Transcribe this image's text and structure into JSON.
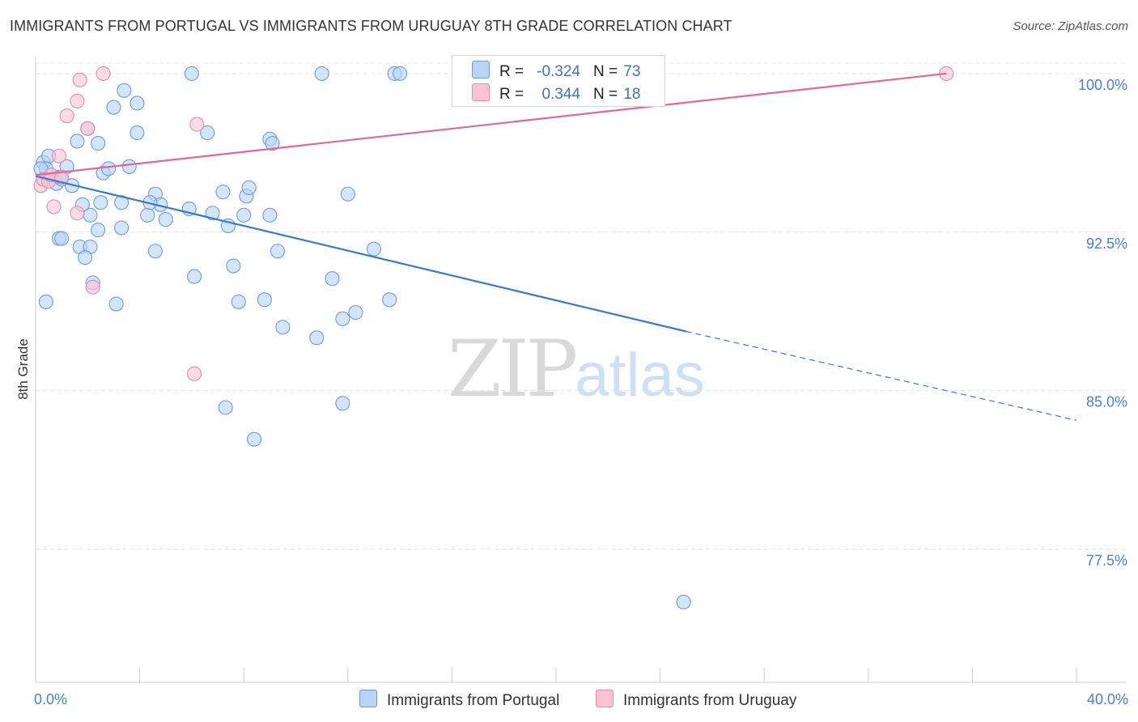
{
  "title": "IMMIGRANTS FROM PORTUGAL VS IMMIGRANTS FROM URUGUAY 8TH GRADE CORRELATION CHART",
  "source": "Source: ZipAtlas.com",
  "watermark": {
    "zip": "ZIP",
    "atlas": "atlas"
  },
  "legend": {
    "r_label": "R =",
    "n_label": "N =",
    "rows": [
      {
        "r": "-0.324",
        "n": "73",
        "color": "#b8d3f5",
        "border": "#6a9de0"
      },
      {
        "r": "0.344",
        "n": "18",
        "color": "#f8c4d4",
        "border": "#e88aa8"
      }
    ]
  },
  "bottom_legend": [
    {
      "label": "Immigrants from Portugal",
      "color": "#b8d3f5",
      "border": "#6a9de0"
    },
    {
      "label": "Immigrants from Uruguay",
      "color": "#f8c4d4",
      "border": "#e88aa8"
    }
  ],
  "chart_data": {
    "type": "scatter",
    "title": "IMMIGRANTS FROM PORTUGAL VS IMMIGRANTS FROM URUGUAY 8TH GRADE CORRELATION CHART",
    "xlabel": "",
    "ylabel": "8th Grade",
    "xlim": [
      0,
      40
    ],
    "ylim": [
      71.2,
      100.8
    ],
    "x_tick_labels": [
      {
        "value": 0,
        "label": "0.0%"
      },
      {
        "value": 40,
        "label": "40.0%"
      }
    ],
    "y_tick_labels": [
      {
        "value": 100,
        "label": "100.0%"
      },
      {
        "value": 92.5,
        "label": "92.5%"
      },
      {
        "value": 85,
        "label": "85.0%"
      },
      {
        "value": 77.5,
        "label": "77.5%"
      }
    ],
    "grid": true,
    "series": [
      {
        "name": "Immigrants from Portugal",
        "color": "#b8d3f5",
        "stroke": "#6a9de0",
        "trend": {
          "x0": 0,
          "y0": 95.15,
          "x1": 25.0,
          "y1": 87.8,
          "dashed_to_x": 40.0,
          "dashed_to_y": 83.6,
          "color": "#3a78d6"
        },
        "points": [
          [
            0.3,
            95.8
          ],
          [
            0.5,
            96.1
          ],
          [
            0.4,
            95.5
          ],
          [
            0.6,
            95.2
          ],
          [
            0.8,
            94.8
          ],
          [
            0.9,
            95.1
          ],
          [
            1.0,
            95.0
          ],
          [
            1.2,
            95.6
          ],
          [
            1.6,
            96.8
          ],
          [
            2.0,
            97.4
          ],
          [
            2.4,
            96.7
          ],
          [
            2.6,
            95.3
          ],
          [
            2.8,
            95.5
          ],
          [
            3.0,
            98.4
          ],
          [
            3.4,
            99.2
          ],
          [
            3.9,
            98.6
          ],
          [
            6.0,
            100.0
          ],
          [
            11.0,
            100.0
          ],
          [
            13.8,
            100.0
          ],
          [
            14.0,
            100.0
          ],
          [
            16.6,
            100.0
          ],
          [
            3.9,
            97.2
          ],
          [
            3.6,
            95.6
          ],
          [
            1.4,
            94.7
          ],
          [
            1.8,
            93.8
          ],
          [
            2.5,
            93.9
          ],
          [
            3.3,
            93.9
          ],
          [
            4.6,
            94.3
          ],
          [
            4.8,
            93.8
          ],
          [
            5.9,
            93.6
          ],
          [
            6.8,
            93.4
          ],
          [
            7.2,
            94.4
          ],
          [
            8.1,
            94.2
          ],
          [
            8.2,
            94.6
          ],
          [
            9.0,
            93.3
          ],
          [
            12.0,
            94.3
          ],
          [
            2.4,
            92.6
          ],
          [
            3.3,
            92.7
          ],
          [
            2.1,
            93.3
          ],
          [
            4.3,
            93.3
          ],
          [
            0.9,
            92.2
          ],
          [
            1.0,
            92.2
          ],
          [
            1.7,
            91.8
          ],
          [
            2.1,
            91.8
          ],
          [
            1.9,
            91.3
          ],
          [
            4.6,
            91.6
          ],
          [
            6.1,
            90.4
          ],
          [
            7.6,
            90.9
          ],
          [
            9.3,
            91.6
          ],
          [
            11.4,
            90.3
          ],
          [
            13.0,
            91.7
          ],
          [
            2.2,
            90.1
          ],
          [
            0.4,
            89.2
          ],
          [
            3.1,
            89.1
          ],
          [
            7.8,
            89.2
          ],
          [
            8.8,
            89.3
          ],
          [
            13.6,
            89.3
          ],
          [
            11.8,
            88.4
          ],
          [
            12.3,
            88.7
          ],
          [
            9.5,
            88.0
          ],
          [
            10.8,
            87.5
          ],
          [
            7.3,
            84.2
          ],
          [
            11.8,
            84.4
          ],
          [
            8.4,
            82.7
          ],
          [
            24.9,
            75.0
          ],
          [
            4.4,
            93.9
          ],
          [
            7.4,
            92.8
          ],
          [
            5.0,
            93.1
          ],
          [
            8.0,
            93.3
          ],
          [
            9.0,
            96.9
          ],
          [
            9.1,
            96.7
          ],
          [
            6.6,
            97.2
          ],
          [
            0.2,
            95.5
          ]
        ]
      },
      {
        "name": "Immigrants from Uruguay",
        "color": "#f8c4d4",
        "stroke": "#e88aa8",
        "trend": {
          "x0": 0,
          "y0": 95.2,
          "x1": 35.0,
          "y1": 100.0,
          "color": "#e06a92"
        },
        "points": [
          [
            0.2,
            94.7
          ],
          [
            0.3,
            95.0
          ],
          [
            0.5,
            94.9
          ],
          [
            0.6,
            95.2
          ],
          [
            0.9,
            96.1
          ],
          [
            1.0,
            95.1
          ],
          [
            0.7,
            93.7
          ],
          [
            1.6,
            93.4
          ],
          [
            2.2,
            89.9
          ],
          [
            1.2,
            98.0
          ],
          [
            1.6,
            98.7
          ],
          [
            1.7,
            99.7
          ],
          [
            2.0,
            97.4
          ],
          [
            2.6,
            100.0
          ],
          [
            6.2,
            97.6
          ],
          [
            6.1,
            85.8
          ],
          [
            23.4,
            100.0
          ],
          [
            35.0,
            100.0
          ]
        ]
      }
    ]
  }
}
